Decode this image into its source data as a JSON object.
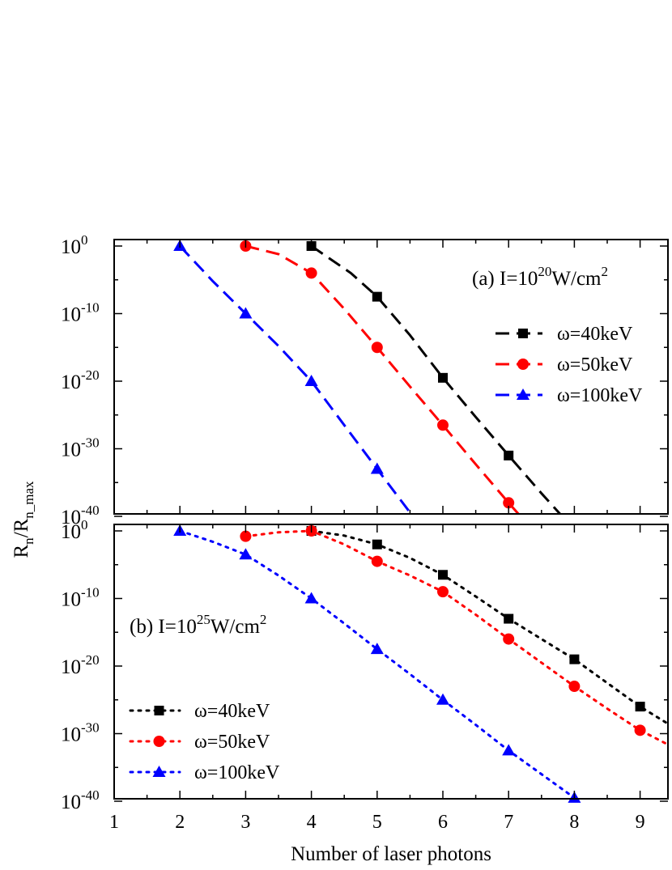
{
  "figure": {
    "ylabel_main": "R",
    "ylabel_sub1": "n",
    "ylabel_mid": "/R",
    "ylabel_sub2": "n_max",
    "xlabel": "Number of laser photons"
  },
  "chart_data": [
    {
      "panel": "a",
      "type": "line",
      "annotation": {
        "prefix": "(a) I=10",
        "exp": "20",
        "unit": "W/cm",
        "unit_exp": "2"
      },
      "y_scale": "log",
      "ylim_exp": [
        -40,
        1
      ],
      "xlim": [
        1,
        9.5
      ],
      "x_ticks": [
        "1",
        "2",
        "3",
        "4",
        "5",
        "6",
        "7",
        "8",
        "9"
      ],
      "y_ticks": [
        {
          "base": "10",
          "exp": "0",
          "value": 0
        },
        {
          "base": "10",
          "exp": "-10",
          "value": -10
        },
        {
          "base": "10",
          "exp": "-20",
          "value": -20
        },
        {
          "base": "10",
          "exp": "-30",
          "value": -30
        },
        {
          "base": "10",
          "exp": "-40",
          "value": -40
        }
      ],
      "line_style": "dashed",
      "legend_position": "right",
      "series": [
        {
          "name": "ω=40keV",
          "color": "#000000",
          "marker": "square",
          "points": [
            [
              4,
              0
            ],
            [
              5,
              -7.5
            ],
            [
              6,
              -19.5
            ],
            [
              7,
              -31
            ],
            [
              8,
              -42
            ]
          ],
          "curve": [
            [
              4,
              0
            ],
            [
              4.6,
              -4
            ],
            [
              5,
              -7.5
            ],
            [
              5.5,
              -13.2
            ],
            [
              6,
              -19.5
            ],
            [
              6.5,
              -25.3
            ],
            [
              7,
              -31
            ],
            [
              7.5,
              -36.6
            ],
            [
              8,
              -42
            ],
            [
              8.2,
              -44
            ]
          ]
        },
        {
          "name": "ω=50keV",
          "color": "#ff0000",
          "marker": "circle",
          "points": [
            [
              3,
              0
            ],
            [
              4,
              -4
            ],
            [
              5,
              -15
            ],
            [
              6,
              -26.5
            ],
            [
              7,
              -38
            ]
          ],
          "curve": [
            [
              3,
              0
            ],
            [
              3.5,
              -1.2
            ],
            [
              4,
              -4
            ],
            [
              4.5,
              -9.3
            ],
            [
              5,
              -15
            ],
            [
              5.5,
              -20.8
            ],
            [
              6,
              -26.5
            ],
            [
              6.5,
              -32.3
            ],
            [
              7,
              -38
            ],
            [
              7.5,
              -43.5
            ]
          ]
        },
        {
          "name": "ω=100keV",
          "color": "#0000ff",
          "marker": "triangle",
          "points": [
            [
              2,
              0
            ],
            [
              3,
              -10
            ],
            [
              4,
              -20
            ],
            [
              5,
              -33
            ]
          ],
          "curve": [
            [
              2,
              0
            ],
            [
              2.5,
              -5.2
            ],
            [
              3,
              -10
            ],
            [
              3.5,
              -14.8
            ],
            [
              4,
              -20
            ],
            [
              4.5,
              -26.5
            ],
            [
              5,
              -33
            ],
            [
              5.7,
              -42
            ]
          ]
        }
      ]
    },
    {
      "panel": "b",
      "type": "line",
      "annotation": {
        "prefix": "(b) I=10",
        "exp": "25",
        "unit": "W/cm",
        "unit_exp": "2"
      },
      "y_scale": "log",
      "ylim_exp": [
        -40,
        1
      ],
      "xlim": [
        1,
        9.5
      ],
      "x_ticks": [
        "1",
        "2",
        "3",
        "4",
        "5",
        "6",
        "7",
        "8",
        "9"
      ],
      "y_ticks": [
        {
          "base": "10",
          "exp": "0",
          "value": 0
        },
        {
          "base": "10",
          "exp": "-10",
          "value": -10
        },
        {
          "base": "10",
          "exp": "-20",
          "value": -20
        },
        {
          "base": "10",
          "exp": "-30",
          "value": -30
        },
        {
          "base": "10",
          "exp": "-40",
          "value": -40
        }
      ],
      "line_style": "dotted",
      "legend_position": "bottom-left",
      "series": [
        {
          "name": "ω=40keV",
          "color": "#000000",
          "marker": "square",
          "points": [
            [
              4,
              0
            ],
            [
              5,
              -2
            ],
            [
              6,
              -6.5
            ],
            [
              7,
              -13
            ],
            [
              8,
              -19
            ],
            [
              9,
              -26
            ]
          ],
          "curve": [
            [
              4,
              0
            ],
            [
              4.5,
              -0.7
            ],
            [
              5,
              -2
            ],
            [
              5.5,
              -4
            ],
            [
              6,
              -6.5
            ],
            [
              6.5,
              -9.7
            ],
            [
              7,
              -13
            ],
            [
              7.5,
              -16
            ],
            [
              8,
              -19
            ],
            [
              8.5,
              -22.5
            ],
            [
              9,
              -26
            ],
            [
              9.5,
              -29
            ]
          ]
        },
        {
          "name": "ω=50keV",
          "color": "#ff0000",
          "marker": "circle",
          "points": [
            [
              3,
              -0.8
            ],
            [
              4,
              0
            ],
            [
              5,
              -4.5
            ],
            [
              6,
              -9
            ],
            [
              7,
              -16
            ],
            [
              8,
              -23
            ],
            [
              9,
              -29.5
            ]
          ],
          "curve": [
            [
              3,
              -0.8
            ],
            [
              3.5,
              -0.2
            ],
            [
              4,
              0
            ],
            [
              4.5,
              -2
            ],
            [
              5,
              -4.5
            ],
            [
              5.5,
              -6.6
            ],
            [
              6,
              -9
            ],
            [
              6.5,
              -12.4
            ],
            [
              7,
              -16
            ],
            [
              7.5,
              -19.5
            ],
            [
              8,
              -23
            ],
            [
              8.5,
              -26.3
            ],
            [
              9,
              -29.5
            ],
            [
              9.5,
              -32
            ]
          ]
        },
        {
          "name": "ω=100keV",
          "color": "#0000ff",
          "marker": "triangle",
          "points": [
            [
              2,
              0
            ],
            [
              3,
              -3.5
            ],
            [
              4,
              -10
            ],
            [
              5,
              -17.5
            ],
            [
              6,
              -25
            ],
            [
              7,
              -32.5
            ],
            [
              8,
              -39.5
            ]
          ],
          "curve": [
            [
              2,
              0
            ],
            [
              2.5,
              -1.6
            ],
            [
              3,
              -3.5
            ],
            [
              3.5,
              -6.6
            ],
            [
              4,
              -10
            ],
            [
              4.5,
              -13.7
            ],
            [
              5,
              -17.5
            ],
            [
              5.5,
              -21.2
            ],
            [
              6,
              -25
            ],
            [
              6.5,
              -28.7
            ],
            [
              7,
              -32.5
            ],
            [
              7.5,
              -36
            ],
            [
              8,
              -39.5
            ],
            [
              8.3,
              -41.5
            ]
          ]
        }
      ]
    }
  ]
}
